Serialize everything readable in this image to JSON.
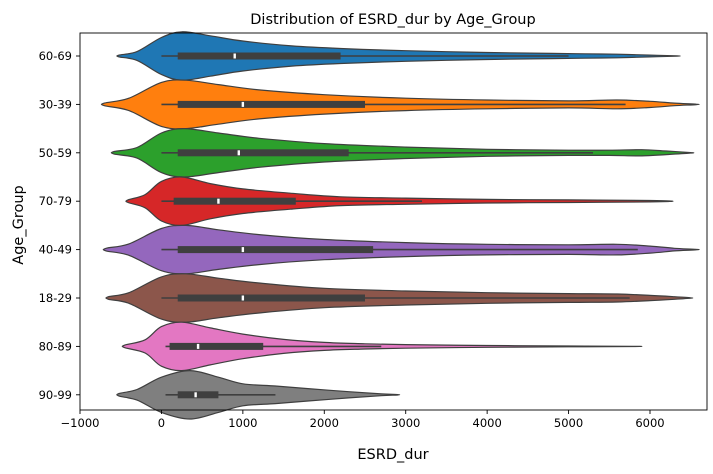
{
  "chart_data": {
    "type": "violin",
    "title": "Distribution of ESRD_dur by Age_Group",
    "xlabel": "ESRD_dur",
    "ylabel": "Age_Group",
    "xlim": [
      -1000,
      6700
    ],
    "xticks": [
      -1000,
      0,
      1000,
      2000,
      3000,
      4000,
      5000,
      6000
    ],
    "xtick_labels": [
      "−1000",
      "0",
      "1000",
      "2000",
      "3000",
      "4000",
      "5000",
      "6000"
    ],
    "grid": false,
    "categories": [
      "60-69",
      "30-39",
      "50-59",
      "70-79",
      "40-49",
      "18-29",
      "80-89",
      "90-99"
    ],
    "series": [
      {
        "category": "60-69",
        "color": "#1f77b4",
        "min": 0,
        "q1": 200,
        "median": 900,
        "q3": 2200,
        "max": 5000,
        "violin_min": -520,
        "violin_max": 6330,
        "profile": [
          [
            -520,
            0.02
          ],
          [
            -300,
            0.1
          ],
          [
            0,
            0.42
          ],
          [
            250,
            0.55
          ],
          [
            600,
            0.46
          ],
          [
            1000,
            0.34
          ],
          [
            1600,
            0.23
          ],
          [
            2200,
            0.17
          ],
          [
            3000,
            0.12
          ],
          [
            4000,
            0.08
          ],
          [
            4800,
            0.06
          ],
          [
            5200,
            0.05
          ],
          [
            5600,
            0.04
          ],
          [
            6000,
            0.02
          ],
          [
            6330,
            0.005
          ]
        ]
      },
      {
        "category": "30-39",
        "color": "#ff7f0e",
        "min": 0,
        "q1": 200,
        "median": 1000,
        "q3": 2500,
        "max": 5700,
        "violin_min": -700,
        "violin_max": 6570,
        "profile": [
          [
            -700,
            0.03
          ],
          [
            -400,
            0.14
          ],
          [
            0,
            0.5
          ],
          [
            300,
            0.55
          ],
          [
            700,
            0.45
          ],
          [
            1200,
            0.33
          ],
          [
            2000,
            0.22
          ],
          [
            3000,
            0.14
          ],
          [
            4000,
            0.1
          ],
          [
            5000,
            0.08
          ],
          [
            5600,
            0.1
          ],
          [
            6000,
            0.07
          ],
          [
            6300,
            0.03
          ],
          [
            6570,
            0.005
          ]
        ]
      },
      {
        "category": "50-59",
        "color": "#2ca02c",
        "min": 0,
        "q1": 200,
        "median": 950,
        "q3": 2300,
        "max": 5300,
        "violin_min": -580,
        "violin_max": 6500,
        "profile": [
          [
            -580,
            0.03
          ],
          [
            -300,
            0.12
          ],
          [
            0,
            0.45
          ],
          [
            280,
            0.55
          ],
          [
            700,
            0.45
          ],
          [
            1200,
            0.33
          ],
          [
            2000,
            0.21
          ],
          [
            3000,
            0.13
          ],
          [
            4000,
            0.08
          ],
          [
            5000,
            0.06
          ],
          [
            5500,
            0.06
          ],
          [
            5900,
            0.07
          ],
          [
            6200,
            0.04
          ],
          [
            6500,
            0.005
          ]
        ]
      },
      {
        "category": "70-79",
        "color": "#d62728",
        "min": 0,
        "q1": 150,
        "median": 700,
        "q3": 1650,
        "max": 3200,
        "violin_min": -410,
        "violin_max": 6250,
        "profile": [
          [
            -410,
            0.03
          ],
          [
            -200,
            0.15
          ],
          [
            0,
            0.45
          ],
          [
            250,
            0.55
          ],
          [
            600,
            0.4
          ],
          [
            1000,
            0.28
          ],
          [
            1600,
            0.18
          ],
          [
            2200,
            0.1
          ],
          [
            3000,
            0.07
          ],
          [
            4000,
            0.04
          ],
          [
            5000,
            0.03
          ],
          [
            6000,
            0.015
          ],
          [
            6250,
            0.005
          ]
        ]
      },
      {
        "category": "40-49",
        "color": "#9467bd",
        "min": 0,
        "q1": 200,
        "median": 1000,
        "q3": 2600,
        "max": 5850,
        "violin_min": -680,
        "violin_max": 6570,
        "profile": [
          [
            -680,
            0.03
          ],
          [
            -400,
            0.13
          ],
          [
            0,
            0.48
          ],
          [
            300,
            0.55
          ],
          [
            700,
            0.45
          ],
          [
            1200,
            0.34
          ],
          [
            2000,
            0.23
          ],
          [
            3000,
            0.16
          ],
          [
            4000,
            0.12
          ],
          [
            5000,
            0.11
          ],
          [
            5600,
            0.12
          ],
          [
            6000,
            0.08
          ],
          [
            6300,
            0.03
          ],
          [
            6570,
            0.005
          ]
        ]
      },
      {
        "category": "18-29",
        "color": "#8c564b",
        "min": 0,
        "q1": 200,
        "median": 1000,
        "q3": 2500,
        "max": 5750,
        "violin_min": -650,
        "violin_max": 6500,
        "profile": [
          [
            -650,
            0.03
          ],
          [
            -400,
            0.12
          ],
          [
            0,
            0.48
          ],
          [
            300,
            0.55
          ],
          [
            700,
            0.45
          ],
          [
            1200,
            0.34
          ],
          [
            2000,
            0.22
          ],
          [
            3000,
            0.16
          ],
          [
            4000,
            0.12
          ],
          [
            5000,
            0.1
          ],
          [
            5600,
            0.09
          ],
          [
            6000,
            0.06
          ],
          [
            6300,
            0.03
          ],
          [
            6500,
            0.005
          ]
        ]
      },
      {
        "category": "80-89",
        "color": "#e377c2",
        "min": 50,
        "q1": 100,
        "median": 450,
        "q3": 1250,
        "max": 2700,
        "violin_min": -450,
        "violin_max": 5800,
        "profile": [
          [
            -450,
            0.03
          ],
          [
            -200,
            0.15
          ],
          [
            0,
            0.45
          ],
          [
            250,
            0.55
          ],
          [
            600,
            0.42
          ],
          [
            1000,
            0.28
          ],
          [
            1500,
            0.16
          ],
          [
            2000,
            0.09
          ],
          [
            2500,
            0.06
          ],
          [
            3000,
            0.04
          ],
          [
            4000,
            0.02
          ],
          [
            5000,
            0.01
          ],
          [
            5800,
            0.003
          ]
        ]
      },
      {
        "category": "90-99",
        "color": "#7f7f7f",
        "min": 50,
        "q1": 200,
        "median": 420,
        "q3": 700,
        "max": 1400,
        "violin_min": -520,
        "violin_max": 2900,
        "profile": [
          [
            -520,
            0.03
          ],
          [
            -300,
            0.12
          ],
          [
            0,
            0.4
          ],
          [
            350,
            0.55
          ],
          [
            700,
            0.4
          ],
          [
            1000,
            0.25
          ],
          [
            1400,
            0.2
          ],
          [
            1800,
            0.14
          ],
          [
            2300,
            0.07
          ],
          [
            2700,
            0.02
          ],
          [
            2900,
            0.005
          ]
        ]
      }
    ]
  }
}
